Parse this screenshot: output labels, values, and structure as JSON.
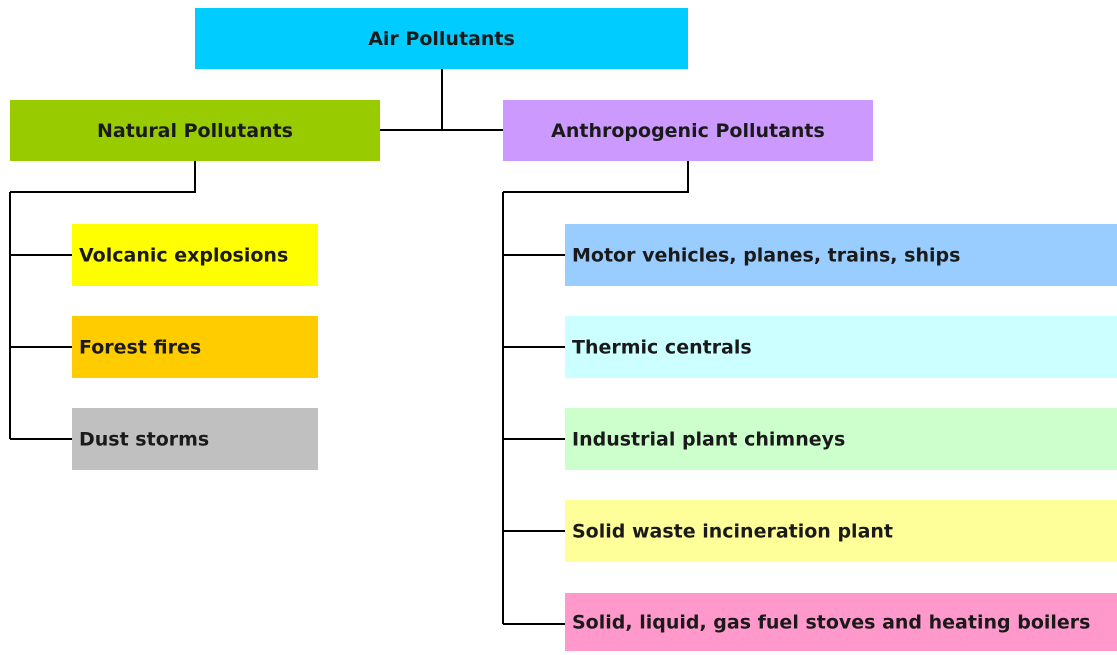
{
  "root": {
    "label": "Air Pollutants",
    "color": "#00ccff"
  },
  "groups": [
    {
      "label": "Natural Pollutants",
      "color": "#99cc00",
      "items": [
        {
          "label": "Volcanic explosions",
          "color": "#ffff00"
        },
        {
          "label": "Forest fires",
          "color": "#ffcc00"
        },
        {
          "label": "Dust storms",
          "color": "#c0c0c0"
        }
      ]
    },
    {
      "label": "Anthropogenic Pollutants",
      "color": "#cc99ff",
      "items": [
        {
          "label": "Motor vehicles, planes, trains, ships",
          "color": "#99ccff"
        },
        {
          "label": "Thermic centrals",
          "color": "#ccffff"
        },
        {
          "label": "Industrial plant chimneys",
          "color": "#ccffcc"
        },
        {
          "label": "Solid waste incineration plant",
          "color": "#ffff99"
        },
        {
          "label": "Solid, liquid, gas fuel stoves and heating boilers",
          "color": "#ff99cc"
        }
      ]
    }
  ]
}
